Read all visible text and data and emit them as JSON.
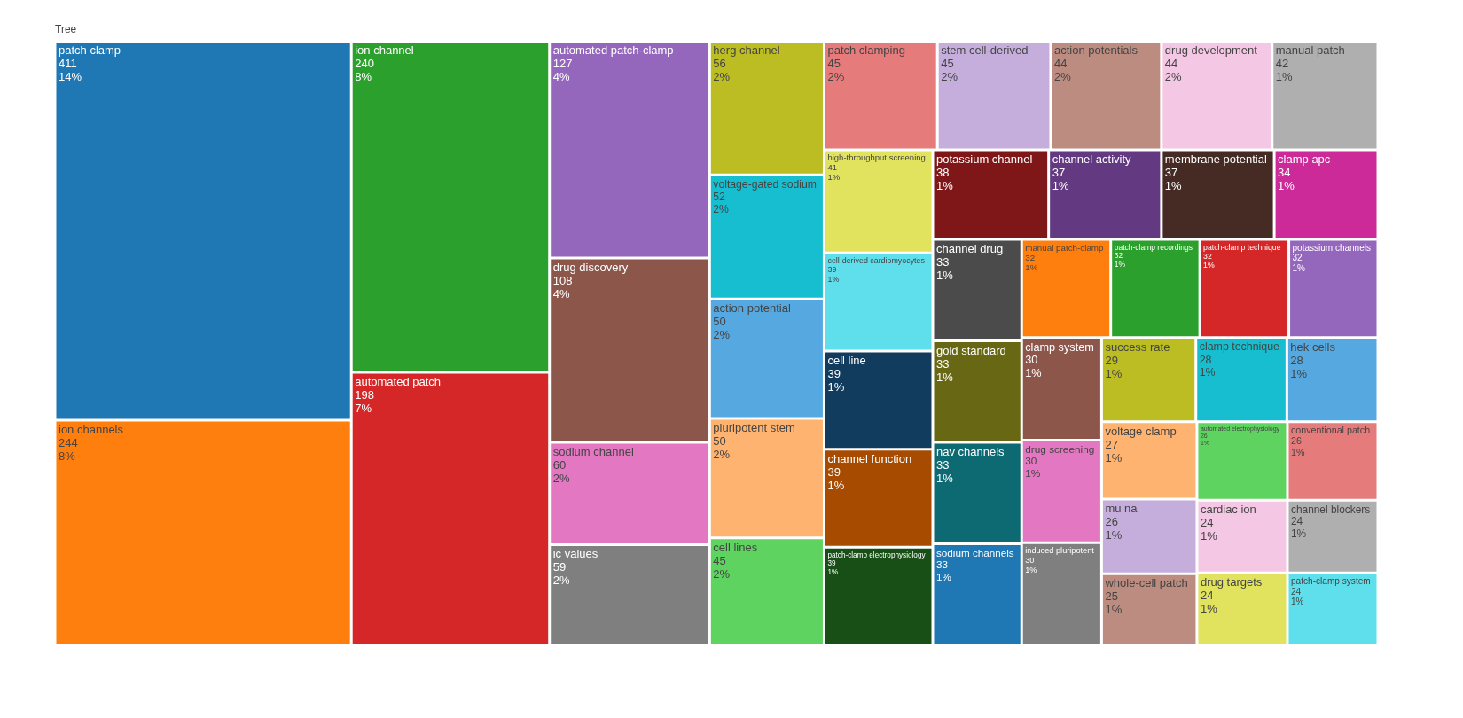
{
  "chart_data": {
    "type": "other",
    "title": "Tree",
    "categories": [
      "patch clamp",
      "ion channels",
      "ion channel",
      "automated patch",
      "automated patch-clamp",
      "drug discovery",
      "sodium channel",
      "ic values",
      "herg channel",
      "voltage-gated sodium",
      "action potential",
      "pluripotent stem",
      "cell lines",
      "patch clamping",
      "stem cell-derived",
      "action potentials",
      "drug development",
      "manual patch",
      "high-throughput screening",
      "cell-derived cardiomyocytes",
      "cell line",
      "channel function",
      "patch-clamp electrophysiology",
      "potassium channel",
      "channel activity",
      "membrane potential",
      "clamp apc",
      "channel drug",
      "gold standard",
      "nav channels",
      "sodium channels",
      "manual patch-clamp",
      "patch-clamp recordings",
      "patch-clamp technique",
      "potassium channels",
      "clamp system",
      "drug screening",
      "induced pluripotent",
      "success rate",
      "clamp technique",
      "hek cells",
      "voltage clamp",
      "mu na",
      "whole-cell patch",
      "automated electrophysiology",
      "conventional patch",
      "cardiac ion",
      "drug targets",
      "channel blockers",
      "patch-clamp system"
    ],
    "values": [
      411,
      244,
      240,
      198,
      127,
      108,
      60,
      59,
      56,
      52,
      50,
      50,
      45,
      45,
      45,
      44,
      44,
      42,
      41,
      39,
      39,
      39,
      39,
      38,
      37,
      37,
      34,
      33,
      33,
      33,
      33,
      32,
      32,
      32,
      32,
      30,
      30,
      30,
      29,
      28,
      28,
      27,
      26,
      25,
      26,
      26,
      24,
      24,
      24,
      24
    ],
    "data_labels": true,
    "colors": [
      "#1f77b4",
      "#ff7f0e",
      "#2ca02c",
      "#d62728",
      "#9467bd",
      "#8c564b",
      "#e377c2",
      "#7f7f7f",
      "#bcbd22",
      "#17becf",
      "#56a8e0",
      "#ffb370",
      "#5fd35f",
      "#e67b7b",
      "#c5aedb",
      "#bc8c80",
      "#f4c8e4",
      "#afafaf",
      "#e1e35f",
      "#5fdfeb",
      "#123c5e",
      "#a64b00",
      "#184f16",
      "#7f1718",
      "#633a82",
      "#462b24",
      "#cb2a98",
      "#4b4b4b",
      "#686814",
      "#0e6a72",
      "#1f77b4",
      "#ff7f0e",
      "#2ca02c",
      "#d62728",
      "#9467bd",
      "#8c564b",
      "#e377c2",
      "#7f7f7f",
      "#bcbd22",
      "#17becf",
      "#56a8e0",
      "#ffb370",
      "#c5aedb",
      "#bc8c80",
      "#5fd35f",
      "#e67b7b",
      "#f4c8e4",
      "#e1e35f",
      "#afafaf",
      "#5fdfeb"
    ],
    "annotations": [
      {
        "text": "14%",
        "x": "patch clamp"
      },
      {
        "text": "8%",
        "x": "ion channels"
      },
      {
        "text": "8%",
        "x": "ion channel"
      },
      {
        "text": "7%",
        "x": "automated patch"
      },
      {
        "text": "4%",
        "x": "automated patch-clamp"
      },
      {
        "text": "4%",
        "x": "drug discovery"
      },
      {
        "text": "2%",
        "x": "sodium channel"
      },
      {
        "text": "2%",
        "x": "ic values"
      },
      {
        "text": "2%",
        "x": "herg channel"
      },
      {
        "text": "2%",
        "x": "voltage-gated sodium"
      },
      {
        "text": "2%",
        "x": "action potential"
      },
      {
        "text": "2%",
        "x": "pluripotent stem"
      },
      {
        "text": "2%",
        "x": "cell lines"
      },
      {
        "text": "2%",
        "x": "patch clamping"
      },
      {
        "text": "2%",
        "x": "stem cell-derived"
      },
      {
        "text": "2%",
        "x": "action potentials"
      },
      {
        "text": "2%",
        "x": "drug development"
      },
      {
        "text": "1%",
        "x": "manual patch"
      },
      {
        "text": "1%",
        "x": "high-throughput screening"
      },
      {
        "text": "1%",
        "x": "cell-derived cardiomyocytes"
      },
      {
        "text": "1%",
        "x": "cell line"
      },
      {
        "text": "1%",
        "x": "channel function"
      },
      {
        "text": "1%",
        "x": "patch-clamp electrophysiology"
      },
      {
        "text": "1%",
        "x": "potassium channel"
      },
      {
        "text": "1%",
        "x": "channel activity"
      },
      {
        "text": "1%",
        "x": "membrane potential"
      },
      {
        "text": "1%",
        "x": "clamp apc"
      },
      {
        "text": "1%",
        "x": "channel drug"
      },
      {
        "text": "1%",
        "x": "gold standard"
      },
      {
        "text": "1%",
        "x": "nav channels"
      },
      {
        "text": "1%",
        "x": "sodium channels"
      },
      {
        "text": "1%",
        "x": "manual patch-clamp"
      },
      {
        "text": "1%",
        "x": "patch-clamp recordings"
      },
      {
        "text": "1%",
        "x": "patch-clamp technique"
      },
      {
        "text": "1%",
        "x": "potassium channels"
      },
      {
        "text": "1%",
        "x": "clamp system"
      },
      {
        "text": "1%",
        "x": "drug screening"
      },
      {
        "text": "1%",
        "x": "induced pluripotent"
      },
      {
        "text": "1%",
        "x": "success rate"
      },
      {
        "text": "1%",
        "x": "clamp technique"
      },
      {
        "text": "1%",
        "x": "hek cells"
      },
      {
        "text": "1%",
        "x": "voltage clamp"
      },
      {
        "text": "1%",
        "x": "mu na"
      },
      {
        "text": "1%",
        "x": "whole-cell patch"
      },
      {
        "text": "1%",
        "x": "automated electrophysiology"
      },
      {
        "text": "1%",
        "x": "conventional patch"
      },
      {
        "text": "1%",
        "x": "cardiac ion"
      },
      {
        "text": "1%",
        "x": "drug targets"
      },
      {
        "text": "1%",
        "x": "channel blockers"
      },
      {
        "text": "1%",
        "x": "patch-clamp system"
      }
    ]
  }
}
